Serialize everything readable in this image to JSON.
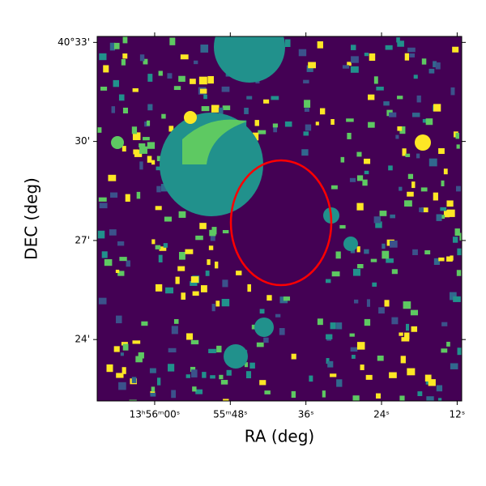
{
  "chart_data": {
    "type": "image",
    "xlabel": "RA (deg)",
    "ylabel": "DEC (deg)",
    "xlim": [
      209.038,
      208.797
    ],
    "ylim": [
      40.369,
      40.553
    ],
    "xticks": [
      {
        "value": 209.0,
        "label": "13ʰ56ᵐ00ˢ"
      },
      {
        "value": 208.95,
        "label": "55ᵐ48ˢ"
      },
      {
        "value": 208.9,
        "label": "36ˢ"
      },
      {
        "value": 208.85,
        "label": "24ˢ"
      },
      {
        "value": 208.8,
        "label": "12ˢ"
      }
    ],
    "yticks": [
      {
        "value": 40.55,
        "label": "40°33'"
      },
      {
        "value": 40.5,
        "label": "30'"
      },
      {
        "value": 40.45,
        "label": "27'"
      },
      {
        "value": 40.4,
        "label": "24'"
      }
    ]
  }
}
